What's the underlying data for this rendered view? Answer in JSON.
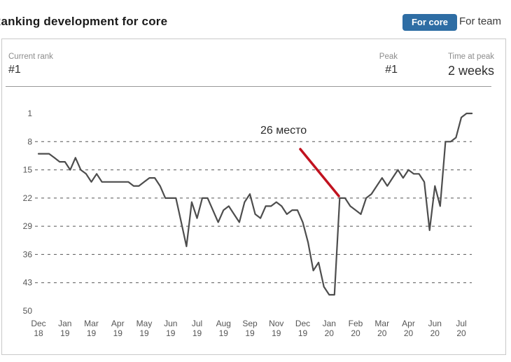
{
  "header": {
    "title": "Ranking development for core",
    "tabs": [
      {
        "label": "For core",
        "active": true
      },
      {
        "label": "For team",
        "active": false
      }
    ],
    "active_tab_color": "#2e6da4"
  },
  "stats": {
    "current_rank_label": "Current rank",
    "current_rank_value": "#1",
    "peak_label": "Peak",
    "peak_value": "#1",
    "time_at_peak_label": "Time at peak",
    "time_at_peak_value": "2 weeks"
  },
  "chart_data": {
    "type": "line",
    "title": "Ranking development for core",
    "y_axis_inverted": true,
    "y_range": [
      1,
      50
    ],
    "y_ticks": [
      1,
      8,
      15,
      22,
      29,
      36,
      43,
      50
    ],
    "y_grid_ranks": [
      8,
      15,
      22,
      29,
      36,
      43
    ],
    "grid_on": true,
    "grid_color": "#555555",
    "tick_color": "#555555",
    "x_tick_every_n_points": 5,
    "x_tick_labels": [
      [
        "Dec",
        "18"
      ],
      [
        "Jan",
        "19"
      ],
      [
        "Mar",
        "19"
      ],
      [
        "Apr",
        "19"
      ],
      [
        "May",
        "19"
      ],
      [
        "Jun",
        "19"
      ],
      [
        "Jul",
        "19"
      ],
      [
        "Aug",
        "19"
      ],
      [
        "Sep",
        "19"
      ],
      [
        "Nov",
        "19"
      ],
      [
        "Dec",
        "19"
      ],
      [
        "Jan",
        "20"
      ],
      [
        "Feb",
        "20"
      ],
      [
        "Mar",
        "20"
      ],
      [
        "Apr",
        "20"
      ],
      [
        "Jun",
        "20"
      ],
      [
        "Jul",
        "20"
      ]
    ],
    "series": [
      {
        "name": "rank",
        "color": "#4d4d4d",
        "values": [
          11,
          11,
          11,
          12,
          13,
          13,
          15,
          12,
          15,
          16,
          18,
          16,
          18,
          18,
          18,
          18,
          18,
          18,
          19,
          19,
          18,
          17,
          17,
          19,
          22,
          22,
          22,
          28,
          34,
          23,
          27,
          22,
          22,
          25,
          28,
          25,
          24,
          26,
          28,
          23,
          21,
          26,
          27,
          24,
          24,
          23,
          24,
          26,
          25,
          25,
          28,
          33,
          40,
          38,
          44,
          46,
          46,
          22,
          22,
          24,
          25,
          26,
          22,
          21,
          19,
          17,
          19,
          17,
          15,
          17,
          15,
          16,
          16,
          18,
          30,
          19,
          24,
          8,
          8,
          7,
          2,
          1,
          1
        ]
      }
    ],
    "annotation": {
      "text": "26 место",
      "color": "#c1121f",
      "text_x": 372,
      "text_y": 191,
      "line": {
        "x1": 429,
        "y1": 213,
        "x2": 484,
        "y2": 280
      }
    }
  }
}
